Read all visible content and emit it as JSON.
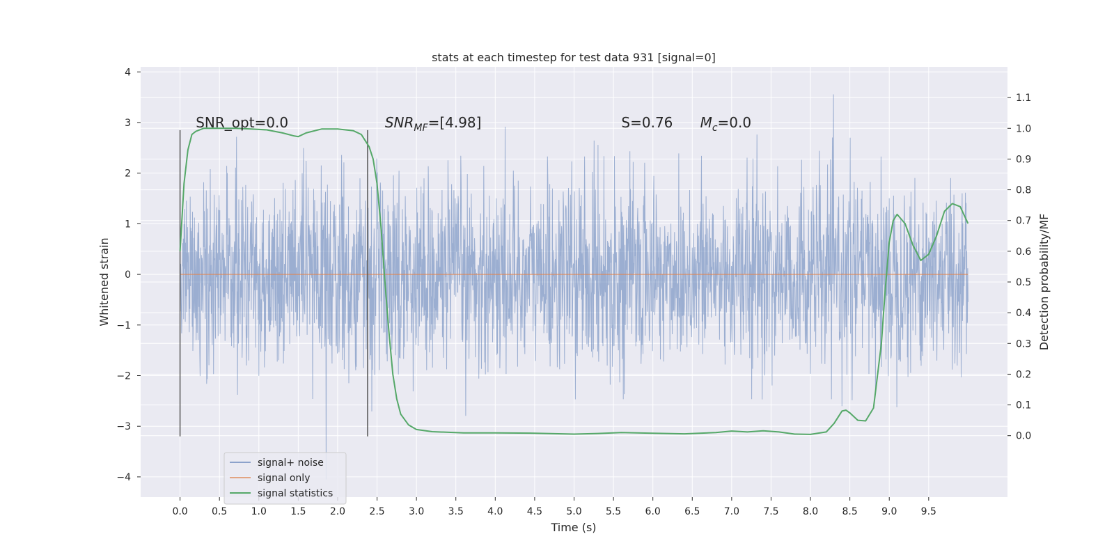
{
  "chart_data": {
    "type": "line",
    "title": "stats at each timestep for test data 931 [signal=0]",
    "xlabel": "Time (s)",
    "ylabel": "Whitened strain",
    "y2label": "Detection probability/MF",
    "xlim": [
      -0.5,
      10.5
    ],
    "ylim": [
      -4.4,
      4.1
    ],
    "y2lim": [
      -0.2,
      1.2
    ],
    "x_ticks": [
      0.0,
      0.5,
      1.0,
      1.5,
      2.0,
      2.5,
      3.0,
      3.5,
      4.0,
      4.5,
      5.0,
      5.5,
      6.0,
      6.5,
      7.0,
      7.5,
      8.0,
      8.5,
      9.0,
      9.5
    ],
    "x_tick_labels": [
      "0.0",
      "0.5",
      "1.0",
      "1.5",
      "2.0",
      "2.5",
      "3.0",
      "3.5",
      "4.0",
      "4.5",
      "5.0",
      "5.5",
      "6.0",
      "6.5",
      "7.0",
      "7.5",
      "8.0",
      "8.5",
      "9.0",
      "9.5"
    ],
    "y_ticks": [
      4,
      3,
      2,
      1,
      0,
      -1,
      -2,
      -3,
      -4
    ],
    "y_tick_labels": [
      "4",
      "3",
      "2",
      "1",
      "0",
      "−1",
      "−2",
      "−3",
      "−4"
    ],
    "y2_ticks": [
      1.1,
      1.0,
      0.9,
      0.8,
      0.7,
      0.6,
      0.5,
      0.4,
      0.3,
      0.2,
      0.1,
      0.0
    ],
    "y2_tick_labels": [
      "1.1",
      "1.0",
      "0.9",
      "0.8",
      "0.7",
      "0.6",
      "0.5",
      "0.4",
      "0.3",
      "0.2",
      "0.1",
      "0.0"
    ],
    "grid": true,
    "legend_position": "lower-left",
    "colors": {
      "background": "#eaeaf2",
      "grid": "#ffffff",
      "noise": "#4c72b0",
      "signal": "#dd8452",
      "stats": "#55a868",
      "marker": "#555555"
    },
    "series": [
      {
        "name": "signal+ noise",
        "axis": "left",
        "kind": "noise-band",
        "t_range": [
          0.0,
          10.0
        ],
        "sigma": 0.93,
        "y_extremes": [
          3.7,
          -4.05
        ]
      },
      {
        "name": "signal only",
        "axis": "left",
        "x": [
          0.0,
          10.0
        ],
        "y": [
          0.0,
          0.0
        ]
      },
      {
        "name": "signal statistics",
        "axis": "right",
        "x": [
          0.0,
          0.05,
          0.1,
          0.15,
          0.2,
          0.3,
          0.5,
          0.7,
          0.9,
          1.1,
          1.3,
          1.45,
          1.5,
          1.6,
          1.8,
          2.0,
          2.2,
          2.3,
          2.4,
          2.45,
          2.5,
          2.55,
          2.6,
          2.65,
          2.7,
          2.75,
          2.8,
          2.9,
          3.0,
          3.2,
          3.6,
          4.0,
          4.5,
          5.0,
          5.3,
          5.6,
          6.0,
          6.4,
          6.8,
          7.0,
          7.2,
          7.4,
          7.6,
          7.8,
          8.0,
          8.2,
          8.3,
          8.4,
          8.45,
          8.5,
          8.6,
          8.7,
          8.8,
          8.9,
          8.95,
          9.0,
          9.05,
          9.1,
          9.2,
          9.3,
          9.4,
          9.5,
          9.6,
          9.7,
          9.8,
          9.9,
          10.0
        ],
        "y": [
          0.6,
          0.82,
          0.93,
          0.98,
          0.99,
          1.0,
          1.0,
          1.0,
          0.998,
          0.995,
          0.985,
          0.975,
          0.973,
          0.985,
          0.998,
          0.998,
          0.992,
          0.98,
          0.94,
          0.9,
          0.82,
          0.68,
          0.5,
          0.34,
          0.2,
          0.12,
          0.07,
          0.035,
          0.02,
          0.013,
          0.009,
          0.009,
          0.008,
          0.005,
          0.007,
          0.01,
          0.008,
          0.006,
          0.01,
          0.015,
          0.012,
          0.016,
          0.012,
          0.005,
          0.004,
          0.012,
          0.04,
          0.08,
          0.083,
          0.074,
          0.05,
          0.048,
          0.09,
          0.3,
          0.48,
          0.63,
          0.7,
          0.72,
          0.69,
          0.62,
          0.57,
          0.59,
          0.65,
          0.73,
          0.755,
          0.745,
          0.69
        ]
      }
    ],
    "vlines": [
      {
        "x": 0.0,
        "y": [
          -3.2,
          2.85
        ]
      },
      {
        "x": 2.38,
        "y": [
          -3.2,
          2.85
        ]
      }
    ],
    "annotations": [
      {
        "text": "SNR_opt=0.0",
        "x": 0.2,
        "y": 2.9
      },
      {
        "base": "SNR",
        "sub": "MF",
        "rest": "=[4.98]",
        "x": 2.6,
        "y": 2.9
      },
      {
        "text": "S=0.76",
        "x": 5.6,
        "y": 2.9
      },
      {
        "base": "M",
        "sub": "c",
        "rest": "=0.0",
        "x": 6.6,
        "y": 2.9
      }
    ]
  }
}
